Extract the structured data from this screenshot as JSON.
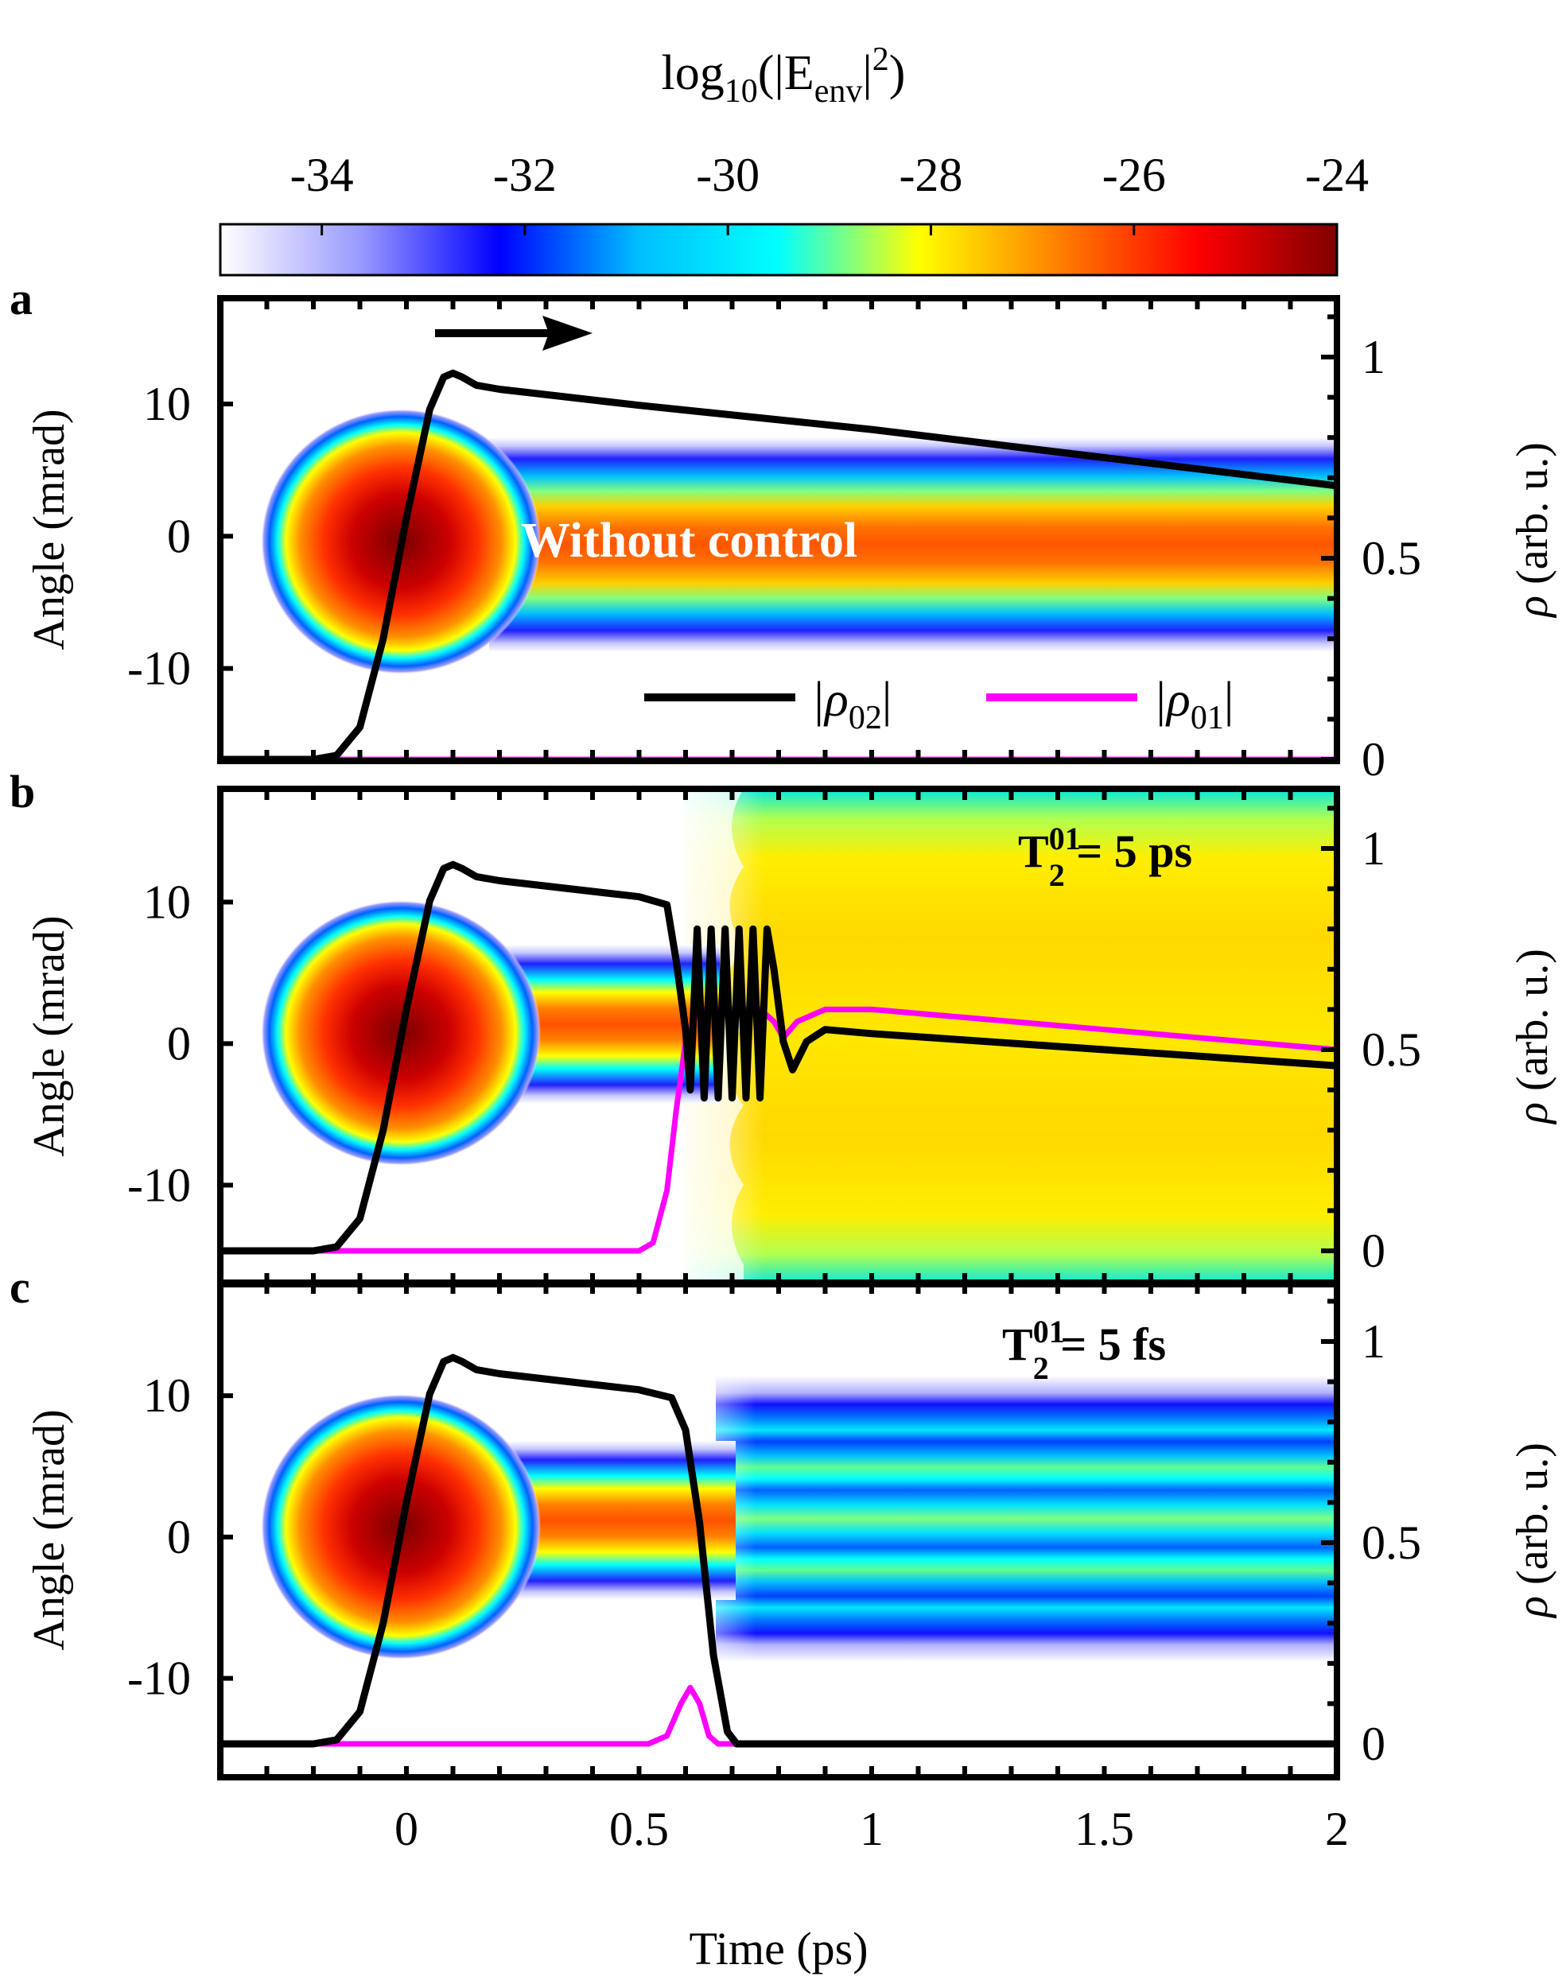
{
  "colorbar": {
    "title_main": "log",
    "title_sub": "10",
    "title_open": "(|E",
    "title_sub2": "env",
    "title_close": "|",
    "title_sup": "2",
    "title_end": ")",
    "ticks": [
      "-34",
      "-32",
      "-30",
      "-28",
      "-26",
      "-24"
    ],
    "tick_values": [
      -34,
      -32,
      -30,
      -28,
      -26,
      -24
    ],
    "range": [
      -35,
      -24
    ],
    "colormap": [
      "#ffffff",
      "#9a9aff",
      "#0000ff",
      "#00bfff",
      "#00ffff",
      "#ffff00",
      "#ff8000",
      "#ff0000",
      "#800000"
    ]
  },
  "chart_data": [
    {
      "panel": "a",
      "type": "heatmap+line",
      "annotation": "Without control",
      "xlabel": "Time (ps)",
      "ylabel_left": "Angle (mrad)",
      "ylabel_right_sym": "ρ",
      "ylabel_right": " (arb. u.)",
      "xlim": [
        -0.4,
        2.0
      ],
      "ylim_left": [
        -17,
        18
      ],
      "ylim_right": [
        0,
        1.1
      ],
      "left_ticks": [
        "10",
        "0",
        "-10"
      ],
      "left_tick_values": [
        10,
        0,
        -10
      ],
      "right_ticks": [
        "1",
        "0.5",
        "0"
      ],
      "right_tick_values": [
        1,
        0.5,
        0
      ],
      "legend": [
        {
          "label_main": "|ρ",
          "label_sub": "02",
          "label_end": "|",
          "color": "#000000"
        },
        {
          "label_main": "|ρ",
          "label_sub": "01",
          "label_end": "|",
          "color": "#ff00ff"
        }
      ],
      "series": [
        {
          "name": "|ρ02|",
          "color": "#000000",
          "x": [
            -0.4,
            -0.2,
            -0.15,
            -0.1,
            -0.05,
            0.0,
            0.05,
            0.08,
            0.1,
            0.12,
            0.15,
            0.2,
            0.5,
            1.0,
            1.5,
            2.0
          ],
          "y": [
            0.0,
            0.0,
            0.01,
            0.08,
            0.3,
            0.6,
            0.87,
            0.95,
            0.96,
            0.95,
            0.93,
            0.92,
            0.88,
            0.82,
            0.75,
            0.68
          ]
        },
        {
          "name": "|ρ01|",
          "color": "#ff00ff",
          "x": [
            -0.4,
            2.0
          ],
          "y": [
            0.0,
            0.0
          ]
        }
      ]
    },
    {
      "panel": "b",
      "type": "heatmap+line",
      "annotation_main": "T",
      "annotation_sub": "2",
      "annotation_sup": "01",
      "annotation_value": " = 5 ps",
      "xlim": [
        -0.4,
        2.0
      ],
      "ylim_left": [
        -17,
        18
      ],
      "ylim_right": [
        0,
        1.1
      ],
      "left_ticks": [
        "10",
        "0",
        "-10"
      ],
      "left_tick_values": [
        10,
        0,
        -10
      ],
      "right_ticks": [
        "1",
        "0.5",
        "0"
      ],
      "right_tick_values": [
        1,
        0.5,
        0
      ],
      "series": [
        {
          "name": "|ρ02|",
          "color": "#000000",
          "x": [
            -0.4,
            -0.2,
            -0.15,
            -0.1,
            -0.05,
            0.0,
            0.05,
            0.08,
            0.1,
            0.12,
            0.15,
            0.2,
            0.5,
            0.56,
            0.58,
            0.6,
            0.61,
            0.625,
            0.64,
            0.655,
            0.67,
            0.685,
            0.7,
            0.715,
            0.73,
            0.745,
            0.76,
            0.775,
            0.79,
            0.81,
            0.83,
            0.86,
            0.9,
            1.0,
            1.5,
            2.0
          ],
          "y": [
            0.0,
            0.0,
            0.01,
            0.08,
            0.3,
            0.6,
            0.87,
            0.95,
            0.96,
            0.95,
            0.93,
            0.92,
            0.88,
            0.86,
            0.72,
            0.55,
            0.4,
            0.8,
            0.38,
            0.8,
            0.38,
            0.8,
            0.38,
            0.8,
            0.38,
            0.8,
            0.38,
            0.8,
            0.7,
            0.52,
            0.45,
            0.52,
            0.55,
            0.54,
            0.5,
            0.46
          ]
        },
        {
          "name": "|ρ01|",
          "color": "#ff00ff",
          "x": [
            -0.4,
            0.5,
            0.53,
            0.56,
            0.58,
            0.6,
            0.62,
            0.64,
            0.7,
            0.76,
            0.79,
            0.81,
            0.84,
            0.9,
            1.0,
            1.5,
            2.0
          ],
          "y": [
            0.0,
            0.0,
            0.02,
            0.15,
            0.35,
            0.52,
            0.58,
            0.6,
            0.6,
            0.6,
            0.57,
            0.53,
            0.57,
            0.6,
            0.6,
            0.55,
            0.5
          ]
        }
      ]
    },
    {
      "panel": "c",
      "type": "heatmap+line",
      "annotation_main": "T",
      "annotation_sub": "2",
      "annotation_sup": "01",
      "annotation_value": " = 5 fs",
      "xlim": [
        -0.4,
        2.0
      ],
      "ylim_left": [
        -17,
        18
      ],
      "ylim_right": [
        0,
        1.1
      ],
      "left_ticks": [
        "10",
        "0",
        "-10"
      ],
      "left_tick_values": [
        10,
        0,
        -10
      ],
      "right_ticks": [
        "1",
        "0.5",
        "0"
      ],
      "right_tick_values": [
        1,
        0.5,
        0
      ],
      "x_ticks": [
        "0",
        "0.5",
        "1",
        "1.5",
        "2"
      ],
      "x_tick_values": [
        0,
        0.5,
        1,
        1.5,
        2
      ],
      "xlabel": "Time (ps)",
      "series": [
        {
          "name": "|ρ02|",
          "color": "#000000",
          "x": [
            -0.4,
            -0.2,
            -0.15,
            -0.1,
            -0.05,
            0.0,
            0.05,
            0.08,
            0.1,
            0.12,
            0.15,
            0.2,
            0.5,
            0.57,
            0.6,
            0.63,
            0.66,
            0.69,
            0.71,
            2.0
          ],
          "y": [
            0.0,
            0.0,
            0.01,
            0.08,
            0.3,
            0.6,
            0.87,
            0.95,
            0.96,
            0.95,
            0.93,
            0.92,
            0.88,
            0.86,
            0.78,
            0.55,
            0.22,
            0.03,
            0.0,
            0.0
          ]
        },
        {
          "name": "|ρ01|",
          "color": "#ff00ff",
          "x": [
            -0.4,
            0.52,
            0.56,
            0.59,
            0.61,
            0.63,
            0.65,
            0.67,
            2.0
          ],
          "y": [
            0.0,
            0.0,
            0.02,
            0.1,
            0.14,
            0.1,
            0.02,
            0.0,
            0.0
          ]
        }
      ]
    }
  ]
}
